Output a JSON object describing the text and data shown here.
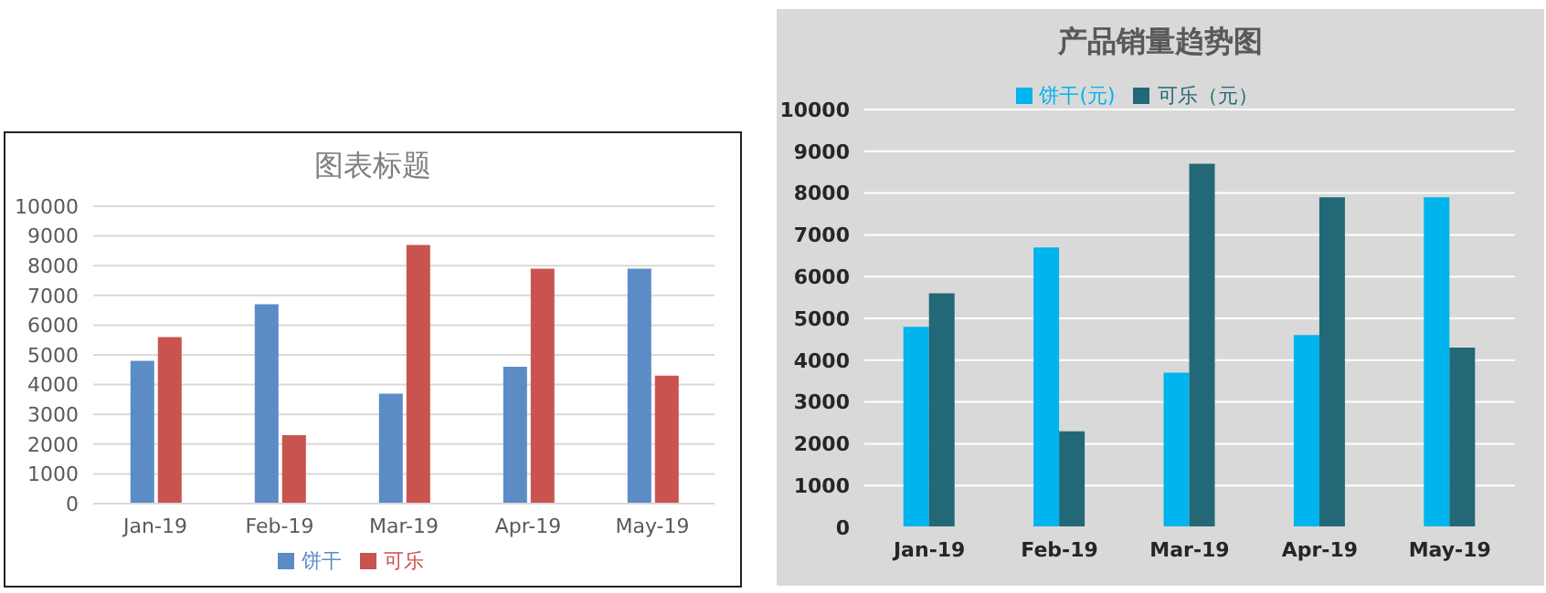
{
  "chart_data": [
    {
      "type": "bar",
      "title": "图表标题",
      "categories": [
        "Jan-19",
        "Feb-19",
        "Mar-19",
        "Apr-19",
        "May-19"
      ],
      "series": [
        {
          "name": "饼干",
          "color": "#5b8cc6",
          "values": [
            4800,
            6700,
            3700,
            4600,
            7900
          ]
        },
        {
          "name": "可乐",
          "color": "#c9544f",
          "values": [
            5600,
            2300,
            8700,
            7900,
            4300
          ]
        }
      ],
      "ylim": [
        0,
        10000
      ],
      "yticks": [
        0,
        1000,
        2000,
        3000,
        4000,
        5000,
        6000,
        7000,
        8000,
        9000,
        10000
      ],
      "grid": "y",
      "legend": "bottom"
    },
    {
      "type": "bar",
      "title": "产品销量趋势图",
      "categories": [
        "Jan-19",
        "Feb-19",
        "Mar-19",
        "Apr-19",
        "May-19"
      ],
      "series": [
        {
          "name": "饼干(元)",
          "color": "#00b4ee",
          "values": [
            4800,
            6700,
            3700,
            4600,
            7900
          ]
        },
        {
          "name": "可乐（元）",
          "color": "#236877",
          "values": [
            5600,
            2300,
            8700,
            7900,
            4300
          ]
        }
      ],
      "ylim": [
        0,
        10000
      ],
      "yticks": [
        0,
        1000,
        2000,
        3000,
        4000,
        5000,
        6000,
        7000,
        8000,
        9000,
        10000
      ],
      "grid": "y",
      "legend": "top"
    }
  ]
}
